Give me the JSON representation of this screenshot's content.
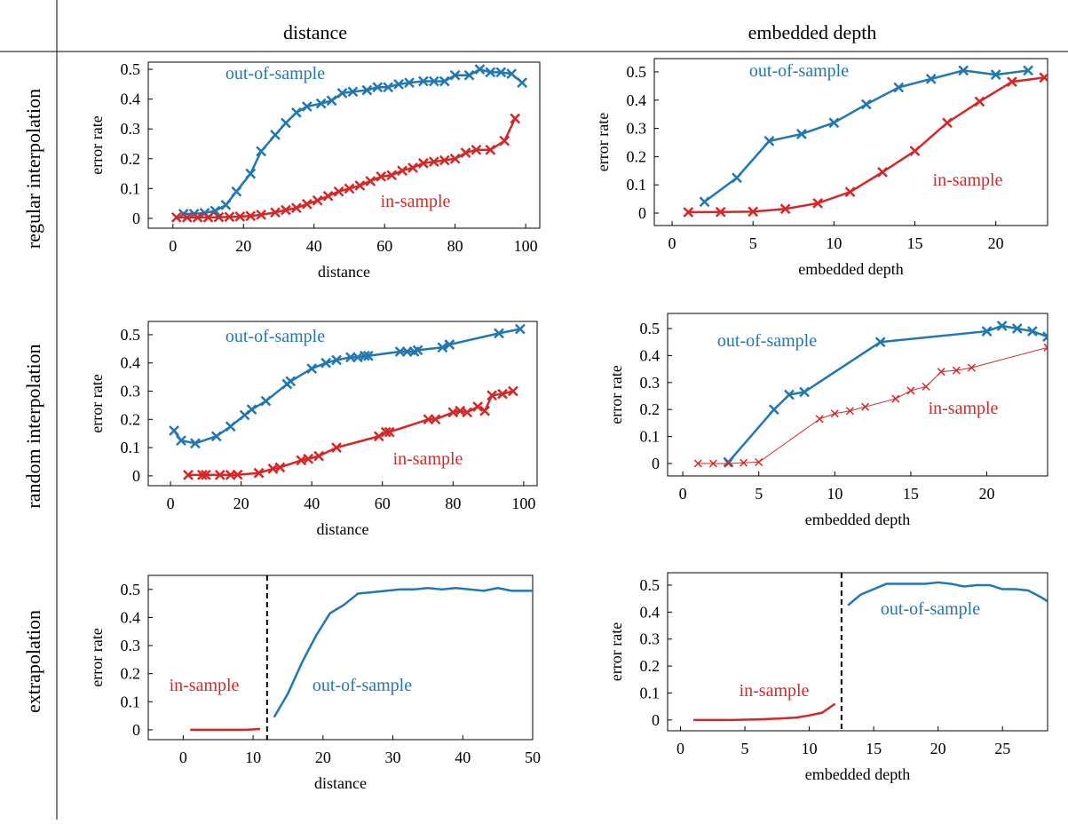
{
  "column_headers": [
    "distance",
    "embedded depth"
  ],
  "row_headers": [
    "regular interpolation",
    "random interpolation",
    "extrapolation"
  ],
  "chart_data": [
    {
      "type": "line",
      "xlabel": "distance",
      "ylabel": "error rate",
      "xlim": [
        -7,
        104
      ],
      "ylim": [
        -0.033,
        0.524
      ],
      "xticks": [
        0,
        20,
        40,
        60,
        80,
        100
      ],
      "yticks": [
        0,
        0.1,
        0.2,
        0.3,
        0.4,
        0.5
      ],
      "series": [
        {
          "name": "out-of-sample",
          "color": "#1f77b4",
          "marker": "x",
          "linewidth": 2.5,
          "x": [
            3,
            6,
            9,
            12,
            15,
            18,
            22,
            25,
            29,
            32,
            35,
            38,
            42,
            45,
            48,
            51,
            55,
            58,
            61,
            64,
            67,
            71,
            74,
            77,
            80,
            84,
            87,
            90,
            93,
            96,
            99
          ],
          "values": [
            0.015,
            0.015,
            0.018,
            0.025,
            0.045,
            0.09,
            0.15,
            0.225,
            0.28,
            0.32,
            0.355,
            0.375,
            0.385,
            0.395,
            0.42,
            0.425,
            0.43,
            0.44,
            0.44,
            0.45,
            0.455,
            0.46,
            0.46,
            0.46,
            0.48,
            0.48,
            0.5,
            0.49,
            0.49,
            0.485,
            0.455
          ]
        },
        {
          "name": "in-sample",
          "color": "#d62728",
          "marker": "x",
          "linewidth": 2.5,
          "x": [
            1,
            4,
            7,
            10,
            13,
            16,
            19,
            22,
            25,
            29,
            32,
            35,
            38,
            41,
            44,
            47,
            50,
            53,
            56,
            59,
            62,
            65,
            68,
            71,
            74,
            77,
            80,
            83,
            86,
            90,
            94,
            97
          ],
          "values": [
            0.003,
            0.003,
            0.003,
            0.003,
            0.004,
            0.005,
            0.006,
            0.008,
            0.012,
            0.02,
            0.028,
            0.035,
            0.048,
            0.06,
            0.075,
            0.09,
            0.1,
            0.11,
            0.125,
            0.14,
            0.145,
            0.16,
            0.17,
            0.185,
            0.19,
            0.195,
            0.2,
            0.22,
            0.23,
            0.23,
            0.26,
            0.335
          ]
        }
      ]
    },
    {
      "type": "line",
      "xlabel": "embedded depth",
      "ylabel": "error rate",
      "xlim": [
        -1.1,
        23.2
      ],
      "ylim": [
        -0.044,
        0.547
      ],
      "xticks": [
        0,
        5,
        10,
        15,
        20
      ],
      "yticks": [
        0,
        0.1,
        0.2,
        0.3,
        0.4,
        0.5
      ],
      "series": [
        {
          "name": "out-of-sample",
          "color": "#1f77b4",
          "marker": "x",
          "linewidth": 2.5,
          "x": [
            2,
            4,
            6,
            8,
            10,
            12,
            14,
            16,
            18,
            20,
            22
          ],
          "values": [
            0.04,
            0.125,
            0.255,
            0.28,
            0.32,
            0.385,
            0.445,
            0.475,
            0.505,
            0.49,
            0.505
          ]
        },
        {
          "name": "in-sample",
          "color": "#d62728",
          "marker": "x",
          "linewidth": 2.5,
          "x": [
            1,
            3,
            5,
            7,
            9,
            11,
            13,
            15,
            17,
            19,
            21,
            23
          ],
          "values": [
            0.003,
            0.004,
            0.005,
            0.015,
            0.035,
            0.075,
            0.145,
            0.22,
            0.32,
            0.395,
            0.465,
            0.48
          ]
        }
      ]
    },
    {
      "type": "line",
      "xlabel": "distance",
      "ylabel": "error rate",
      "xlim": [
        -6.3,
        103.8
      ],
      "ylim": [
        -0.035,
        0.547
      ],
      "xticks": [
        0,
        20,
        40,
        60,
        80,
        100
      ],
      "yticks": [
        0,
        0.1,
        0.2,
        0.3,
        0.4,
        0.5
      ],
      "series": [
        {
          "name": "out-of-sample",
          "color": "#1f77b4",
          "marker": "x",
          "linewidth": 2.5,
          "x": [
            1,
            3,
            7,
            13,
            17,
            21,
            23,
            27,
            33,
            34,
            40,
            44,
            47,
            51,
            53,
            55,
            56,
            65,
            67,
            69,
            70,
            77,
            79,
            93,
            99
          ],
          "values": [
            0.16,
            0.125,
            0.115,
            0.14,
            0.175,
            0.215,
            0.235,
            0.265,
            0.325,
            0.335,
            0.38,
            0.4,
            0.41,
            0.42,
            0.42,
            0.425,
            0.425,
            0.44,
            0.44,
            0.44,
            0.445,
            0.455,
            0.465,
            0.505,
            0.52
          ]
        },
        {
          "name": "in-sample",
          "color": "#d62728",
          "marker": "x",
          "linewidth": 2.5,
          "x": [
            5,
            9,
            10,
            14,
            17,
            19,
            25,
            29,
            31,
            37,
            39,
            42,
            47,
            59,
            61,
            62,
            73,
            75,
            80,
            82,
            84,
            87,
            89,
            91,
            94,
            97
          ],
          "values": [
            0.003,
            0.003,
            0.003,
            0.003,
            0.003,
            0.004,
            0.01,
            0.025,
            0.03,
            0.055,
            0.06,
            0.07,
            0.1,
            0.14,
            0.155,
            0.155,
            0.2,
            0.2,
            0.225,
            0.23,
            0.225,
            0.245,
            0.23,
            0.285,
            0.29,
            0.3
          ]
        }
      ]
    },
    {
      "type": "line",
      "xlabel": "embedded depth",
      "ylabel": "error rate",
      "xlim": [
        -1,
        24
      ],
      "ylim": [
        -0.046,
        0.556
      ],
      "xticks": [
        0,
        5,
        10,
        15,
        20
      ],
      "yticks": [
        0,
        0.1,
        0.2,
        0.3,
        0.4,
        0.5
      ],
      "series": [
        {
          "name": "out-of-sample",
          "color": "#1f77b4",
          "marker": "x",
          "linewidth": 2.5,
          "x": [
            3,
            6,
            7,
            8,
            13,
            20,
            21,
            22,
            23,
            24
          ],
          "values": [
            0.005,
            0.2,
            0.255,
            0.265,
            0.45,
            0.49,
            0.51,
            0.5,
            0.49,
            0.47
          ]
        },
        {
          "name": "in-sample",
          "color": "#d62728",
          "marker": "x",
          "linewidth": 1,
          "x": [
            1,
            2,
            3,
            4,
            5,
            9,
            10,
            11,
            12,
            14,
            15,
            16,
            17,
            18,
            19,
            24
          ],
          "values": [
            0,
            0,
            0,
            0.003,
            0.005,
            0.165,
            0.185,
            0.195,
            0.21,
            0.24,
            0.27,
            0.285,
            0.34,
            0.345,
            0.355,
            0.43
          ]
        }
      ]
    },
    {
      "type": "line",
      "xlabel": "distance",
      "ylabel": "error rate",
      "xlim": [
        -5,
        50
      ],
      "ylim": [
        -0.035,
        0.55
      ],
      "xticks": [
        0,
        10,
        20,
        30,
        40,
        50
      ],
      "yticks": [
        0,
        0.1,
        0.2,
        0.3,
        0.4,
        0.5
      ],
      "vline": 12,
      "series": [
        {
          "name": "in-sample",
          "color": "#d62728",
          "linewidth": 2.5,
          "x": [
            1,
            3,
            5,
            7,
            9,
            11
          ],
          "values": [
            0,
            0,
            0,
            0,
            0,
            0.003
          ]
        },
        {
          "name": "out-of-sample",
          "color": "#1f77b4",
          "linewidth": 2.5,
          "x": [
            13,
            15,
            17,
            19,
            21,
            23,
            25,
            27,
            29,
            31,
            33,
            35,
            37,
            39,
            41,
            43,
            45,
            47,
            49,
            50
          ],
          "values": [
            0.045,
            0.13,
            0.24,
            0.335,
            0.415,
            0.445,
            0.485,
            0.49,
            0.495,
            0.5,
            0.5,
            0.505,
            0.5,
            0.505,
            0.5,
            0.495,
            0.505,
            0.495,
            0.495,
            0.495
          ]
        }
      ]
    },
    {
      "type": "line",
      "xlabel": "embedded depth",
      "ylabel": "error rate",
      "xlim": [
        -1,
        28.5
      ],
      "ylim": [
        -0.04,
        0.546
      ],
      "xticks": [
        0,
        5,
        10,
        15,
        20,
        25
      ],
      "yticks": [
        0,
        0.1,
        0.2,
        0.3,
        0.4,
        0.5
      ],
      "vline": 12.5,
      "series": [
        {
          "name": "out-of-sample",
          "color": "#1f77b4",
          "linewidth": 2.5,
          "x": [
            13,
            14,
            16,
            17,
            18,
            19,
            20,
            21,
            22,
            23,
            24,
            25,
            26,
            27,
            28,
            28.5
          ],
          "values": [
            0.425,
            0.465,
            0.505,
            0.505,
            0.505,
            0.505,
            0.51,
            0.505,
            0.495,
            0.5,
            0.5,
            0.485,
            0.485,
            0.48,
            0.455,
            0.44
          ]
        },
        {
          "name": "in-sample",
          "color": "#d62728",
          "linewidth": 2.5,
          "x": [
            1,
            2,
            3,
            4,
            5,
            6,
            7,
            8,
            9,
            10,
            11,
            12
          ],
          "values": [
            0,
            0,
            0,
            0,
            0.001,
            0.002,
            0.004,
            0.006,
            0.009,
            0.017,
            0.027,
            0.06
          ]
        }
      ]
    }
  ]
}
